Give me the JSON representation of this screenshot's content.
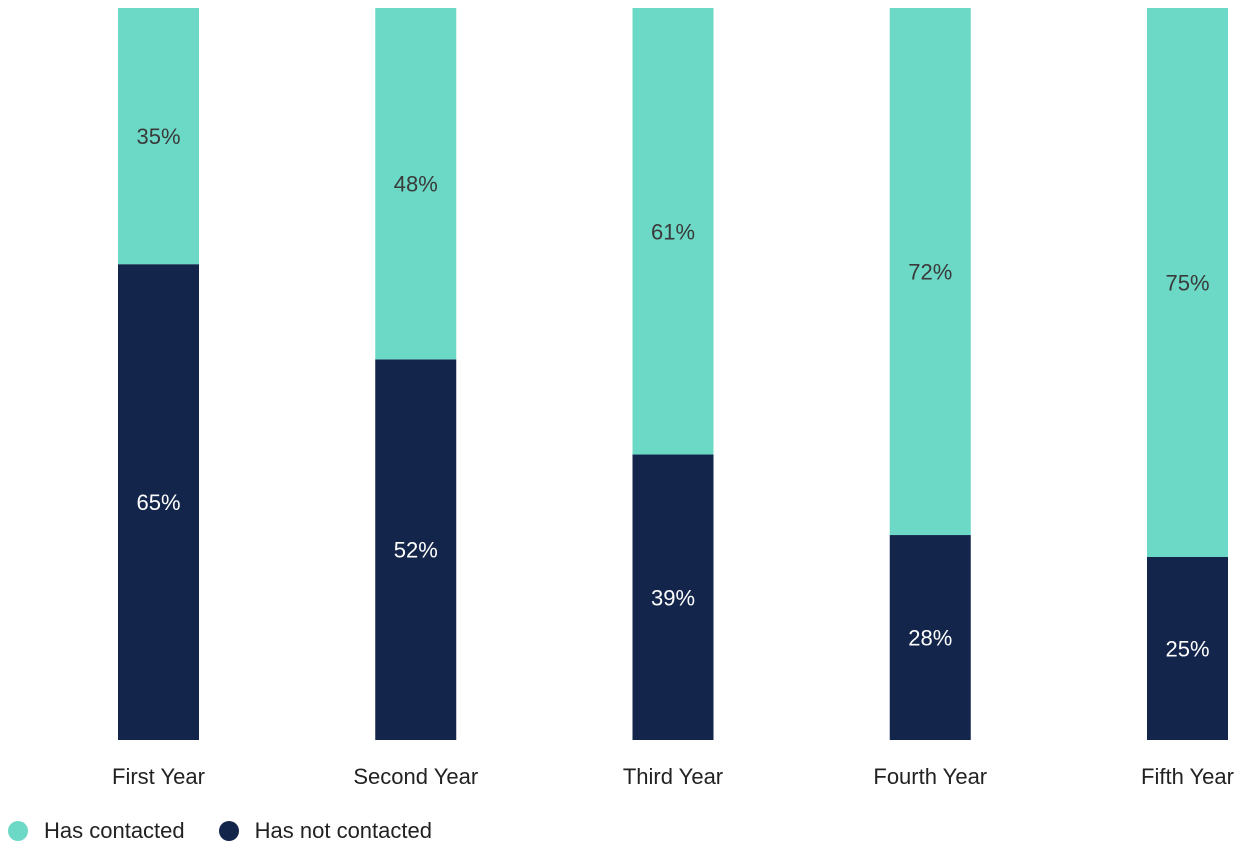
{
  "chart_data": {
    "type": "bar",
    "stacked": true,
    "percent_stacked": true,
    "categories": [
      "First Year",
      "Second Year",
      "Third Year",
      "Fourth Year",
      "Fifth Year"
    ],
    "series": [
      {
        "name": "Has contacted",
        "values": [
          35,
          48,
          61,
          72,
          75
        ],
        "labels": [
          "35%",
          "48%",
          "61%",
          "72%",
          "75%"
        ],
        "color": "#6cd8c6"
      },
      {
        "name": "Has not contacted",
        "values": [
          65,
          52,
          39,
          28,
          25
        ],
        "labels": [
          "65%",
          "52%",
          "39%",
          "28%",
          "25%"
        ],
        "color": "#13254a"
      }
    ],
    "ylim": [
      0,
      100
    ],
    "grid": false,
    "legend_position": "bottom-left"
  }
}
